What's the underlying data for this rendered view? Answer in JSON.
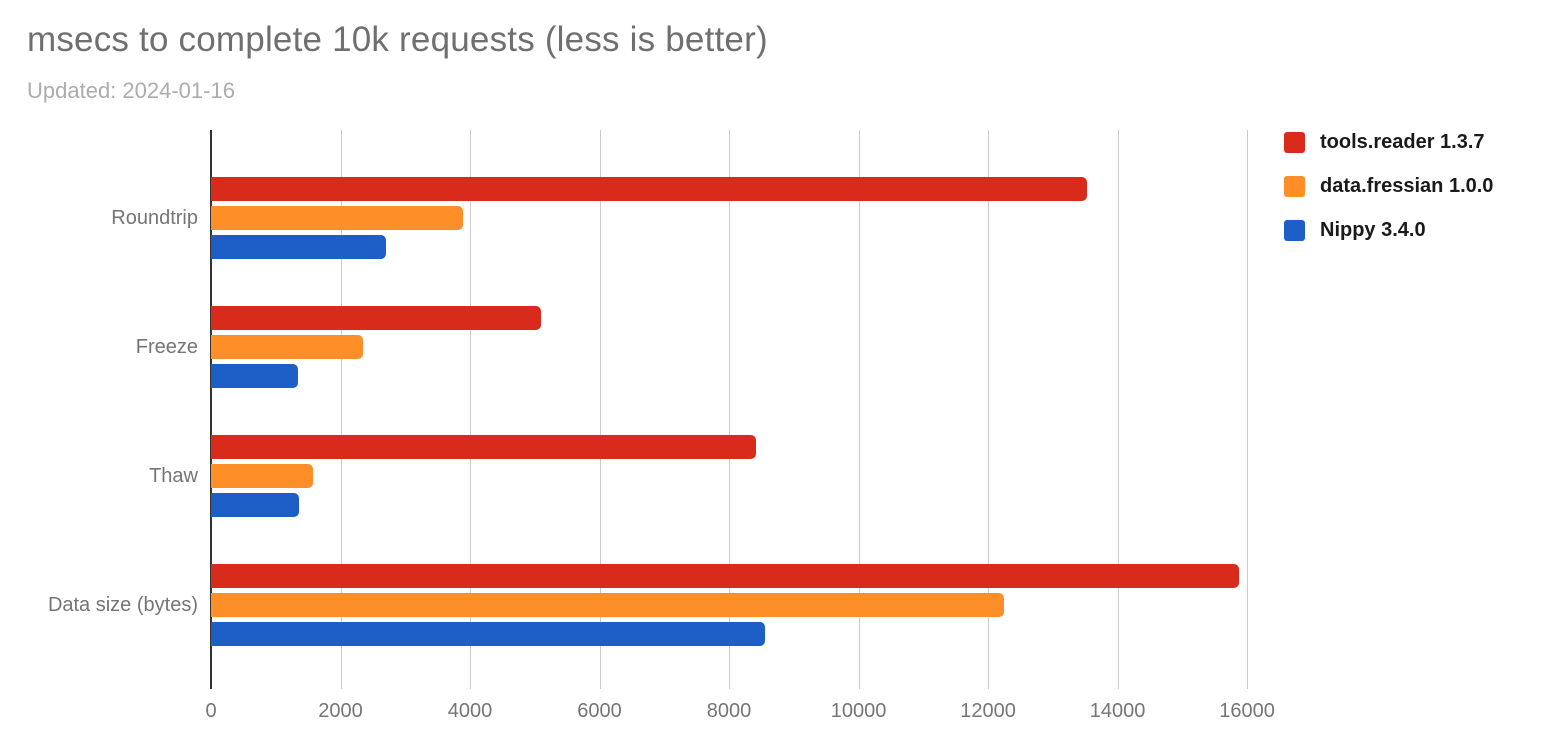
{
  "title": "msecs to complete 10k requests (less is better)",
  "subtitle": "Updated: 2024-01-16",
  "colors": {
    "title_text": "#6f6f6f",
    "subtitle_text": "#acacac",
    "axis_label": "#757575",
    "gridline": "#cccccc",
    "axis_line": "#333333",
    "legend_text": "#1a1a1a"
  },
  "chart_data": {
    "type": "bar",
    "orientation": "horizontal",
    "title": "msecs to complete 10k requests (less is better)",
    "subtitle": "Updated: 2024-01-16",
    "categories": [
      "Roundtrip",
      "Freeze",
      "Thaw",
      "Data size (bytes)"
    ],
    "series": [
      {
        "name": "tools.reader 1.3.7",
        "color": "#d92b1c",
        "values": [
          13530,
          5100,
          8420,
          15880
        ]
      },
      {
        "name": "data.fressian 1.0.0",
        "color": "#fe8e27",
        "values": [
          3890,
          2350,
          1570,
          12250
        ]
      },
      {
        "name": "Nippy 3.4.0",
        "color": "#1d5fc6",
        "values": [
          2700,
          1340,
          1360,
          8550
        ]
      }
    ],
    "x_ticks": [
      0,
      2000,
      4000,
      6000,
      8000,
      10000,
      12000,
      14000,
      16000
    ],
    "x_tick_labels": [
      "0",
      "2000",
      "4000",
      "6000",
      "8000",
      "10000",
      "12000",
      "14000",
      "16000"
    ],
    "xlim": [
      0,
      17280
    ],
    "xlabel": "",
    "ylabel": "",
    "grid": true,
    "legend_position": "right"
  }
}
